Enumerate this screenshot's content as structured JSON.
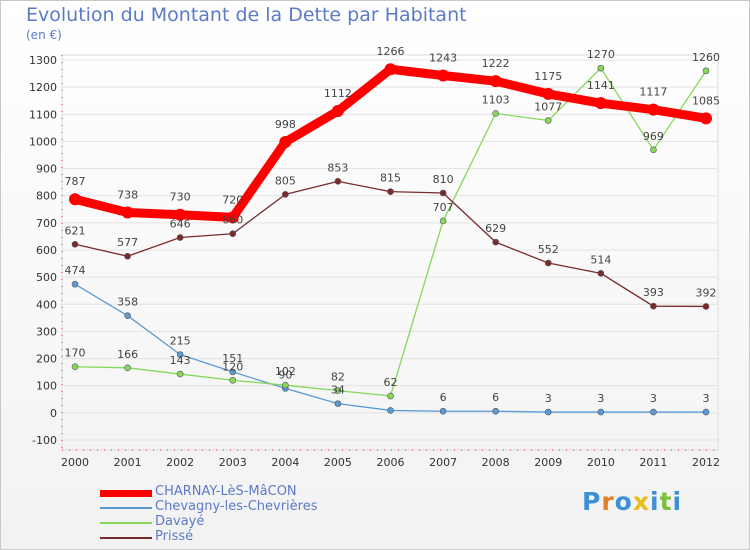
{
  "header": {
    "title": "Evolution du Montant de la Dette par Habitant",
    "unit": "(en €)"
  },
  "logo": {
    "text": "Proxiti",
    "colors": [
      "#3f8fd6",
      "#e67e22",
      "#3f8fd6",
      "#e6c019",
      "#3f8fd6",
      "#7fbf3f",
      "#3f8fd6"
    ]
  },
  "chart_data": {
    "type": "line",
    "title": "Evolution du Montant de la Dette par Habitant",
    "ylabel": "(en €)",
    "xlabel": "",
    "x": [
      "2000",
      "2001",
      "2002",
      "2003",
      "2004",
      "2005",
      "2006",
      "2007",
      "2008",
      "2009",
      "2010",
      "2011",
      "2012"
    ],
    "ylim": [
      -100,
      1300
    ],
    "yticks": [
      "-100",
      "0",
      "100",
      "200",
      "300",
      "400",
      "500",
      "600",
      "700",
      "800",
      "900",
      "1000",
      "1100",
      "1200",
      "1300"
    ],
    "grid": true,
    "legend_position": "bottom-left",
    "series": [
      {
        "name": "CHARNAY-LèS-MâCON",
        "color": "#ff0000",
        "values": [
          787,
          738,
          730,
          720,
          998,
          1112,
          1266,
          1243,
          1222,
          1175,
          1141,
          1117,
          1085
        ],
        "labels": [
          "787",
          "738",
          "730",
          "720",
          "998",
          "1112",
          "1266",
          "1243",
          "1222",
          "1175",
          "1141",
          "1117",
          "1085"
        ]
      },
      {
        "name": "Chevagny-les-Chevrières",
        "color": "#5b9bd5",
        "values": [
          474,
          358,
          215,
          151,
          90,
          34,
          9,
          6,
          6,
          3,
          3,
          3,
          3
        ],
        "labels": [
          "474",
          "358",
          "215",
          "151",
          "90",
          "34",
          "",
          "6",
          "6",
          "3",
          "3",
          "3",
          "3"
        ]
      },
      {
        "name": "Davayé",
        "color": "#86d85a",
        "values": [
          170,
          166,
          143,
          120,
          102,
          82,
          62,
          707,
          1103,
          1077,
          1270,
          969,
          1260
        ],
        "labels": [
          "170",
          "166",
          "143",
          "120",
          "102",
          "82",
          "62",
          "707",
          "1103",
          "1077",
          "1270",
          "969",
          "1260"
        ]
      },
      {
        "name": "Prissé",
        "color": "#7a2a2a",
        "values": [
          621,
          577,
          646,
          660,
          805,
          853,
          815,
          810,
          629,
          552,
          514,
          393,
          392
        ],
        "labels": [
          "621",
          "577",
          "646",
          "660",
          "805",
          "853",
          "815",
          "810",
          "629",
          "552",
          "514",
          "393",
          "392"
        ]
      }
    ]
  }
}
